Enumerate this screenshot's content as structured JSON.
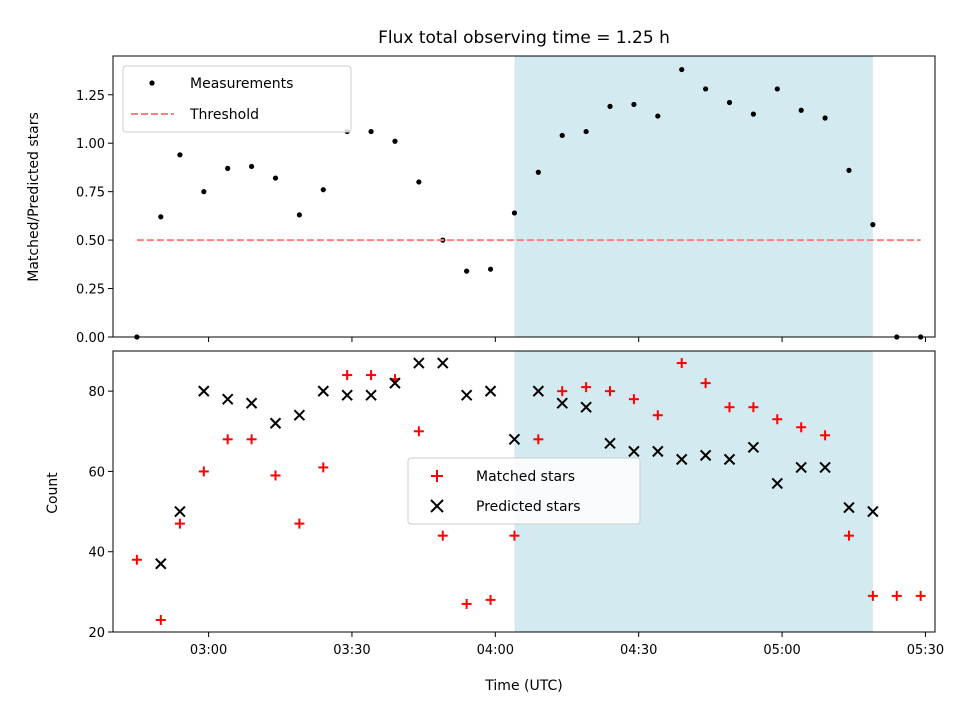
{
  "chart_data": [
    {
      "type": "scatter",
      "title": "Flux total observing time = 1.25 h",
      "ylabel": "Matched/Predicted stars",
      "ylim": [
        0,
        1.45
      ],
      "yticks": [
        "0.00",
        "0.25",
        "0.50",
        "0.75",
        "1.00",
        "1.25"
      ],
      "legend": "top-left",
      "shaded_span": [
        "04:04",
        "05:19"
      ],
      "shade_color": "#d3eaf0",
      "series": [
        {
          "name": "Measurements",
          "marker": "dot",
          "color": "#000000",
          "points": [
            [
              "02:45",
              0.0
            ],
            [
              "02:50",
              0.62
            ],
            [
              "02:54",
              0.94
            ],
            [
              "02:59",
              0.75
            ],
            [
              "03:04",
              0.87
            ],
            [
              "03:09",
              0.88
            ],
            [
              "03:14",
              0.82
            ],
            [
              "03:19",
              0.63
            ],
            [
              "03:24",
              0.76
            ],
            [
              "03:29",
              1.06
            ],
            [
              "03:34",
              1.06
            ],
            [
              "03:39",
              1.01
            ],
            [
              "03:44",
              0.8
            ],
            [
              "03:49",
              0.5
            ],
            [
              "03:54",
              0.34
            ],
            [
              "03:59",
              0.35
            ],
            [
              "04:04",
              0.64
            ],
            [
              "04:09",
              0.85
            ],
            [
              "04:14",
              1.04
            ],
            [
              "04:19",
              1.06
            ],
            [
              "04:24",
              1.19
            ],
            [
              "04:29",
              1.2
            ],
            [
              "04:34",
              1.14
            ],
            [
              "04:39",
              1.38
            ],
            [
              "04:44",
              1.28
            ],
            [
              "04:49",
              1.21
            ],
            [
              "04:54",
              1.15
            ],
            [
              "04:59",
              1.28
            ],
            [
              "05:04",
              1.17
            ],
            [
              "05:09",
              1.13
            ],
            [
              "05:14",
              0.86
            ],
            [
              "05:19",
              0.58
            ],
            [
              "05:24",
              0.0
            ],
            [
              "05:29",
              0.0
            ]
          ]
        },
        {
          "name": "Threshold",
          "marker": "dashed-line",
          "color": "#ff7f7f",
          "points": [
            [
              "02:45",
              0.5
            ],
            [
              "05:29",
              0.5
            ]
          ]
        }
      ]
    },
    {
      "type": "scatter",
      "xlabel": "Time (UTC)",
      "ylabel": "Count",
      "ylim": [
        20,
        90
      ],
      "yticks": [
        "20",
        "40",
        "60",
        "80"
      ],
      "xlim": [
        "02:40",
        "05:32"
      ],
      "xticks": [
        "03:00",
        "03:30",
        "04:00",
        "04:30",
        "05:00",
        "05:30"
      ],
      "legend": "center",
      "shaded_span": [
        "04:04",
        "05:19"
      ],
      "shade_color": "#d3eaf0",
      "series": [
        {
          "name": "Matched stars",
          "marker": "plus",
          "color": "#ff0000",
          "points": [
            [
              "02:45",
              38
            ],
            [
              "02:50",
              23
            ],
            [
              "02:54",
              47
            ],
            [
              "02:59",
              60
            ],
            [
              "03:04",
              68
            ],
            [
              "03:09",
              68
            ],
            [
              "03:14",
              59
            ],
            [
              "03:19",
              47
            ],
            [
              "03:24",
              61
            ],
            [
              "03:29",
              84
            ],
            [
              "03:34",
              84
            ],
            [
              "03:39",
              83
            ],
            [
              "03:44",
              70
            ],
            [
              "03:49",
              44
            ],
            [
              "03:54",
              27
            ],
            [
              "03:59",
              28
            ],
            [
              "04:04",
              44
            ],
            [
              "04:09",
              68
            ],
            [
              "04:14",
              80
            ],
            [
              "04:19",
              81
            ],
            [
              "04:24",
              80
            ],
            [
              "04:29",
              78
            ],
            [
              "04:34",
              74
            ],
            [
              "04:39",
              87
            ],
            [
              "04:44",
              82
            ],
            [
              "04:49",
              76
            ],
            [
              "04:54",
              76
            ],
            [
              "04:59",
              73
            ],
            [
              "05:04",
              71
            ],
            [
              "05:09",
              69
            ],
            [
              "05:14",
              44
            ],
            [
              "05:19",
              29
            ],
            [
              "05:24",
              29
            ],
            [
              "05:29",
              29
            ]
          ]
        },
        {
          "name": "Predicted stars",
          "marker": "x",
          "color": "#000000",
          "points": [
            [
              "02:50",
              37
            ],
            [
              "02:54",
              50
            ],
            [
              "02:59",
              80
            ],
            [
              "03:04",
              78
            ],
            [
              "03:09",
              77
            ],
            [
              "03:14",
              72
            ],
            [
              "03:19",
              74
            ],
            [
              "03:24",
              80
            ],
            [
              "03:29",
              79
            ],
            [
              "03:34",
              79
            ],
            [
              "03:39",
              82
            ],
            [
              "03:44",
              87
            ],
            [
              "03:49",
              87
            ],
            [
              "03:54",
              79
            ],
            [
              "03:59",
              80
            ],
            [
              "04:04",
              68
            ],
            [
              "04:09",
              80
            ],
            [
              "04:14",
              77
            ],
            [
              "04:19",
              76
            ],
            [
              "04:24",
              67
            ],
            [
              "04:29",
              65
            ],
            [
              "04:34",
              65
            ],
            [
              "04:39",
              63
            ],
            [
              "04:44",
              64
            ],
            [
              "04:49",
              63
            ],
            [
              "04:54",
              66
            ],
            [
              "04:59",
              57
            ],
            [
              "05:04",
              61
            ],
            [
              "05:09",
              61
            ],
            [
              "05:14",
              51
            ],
            [
              "05:19",
              50
            ]
          ]
        }
      ]
    }
  ]
}
